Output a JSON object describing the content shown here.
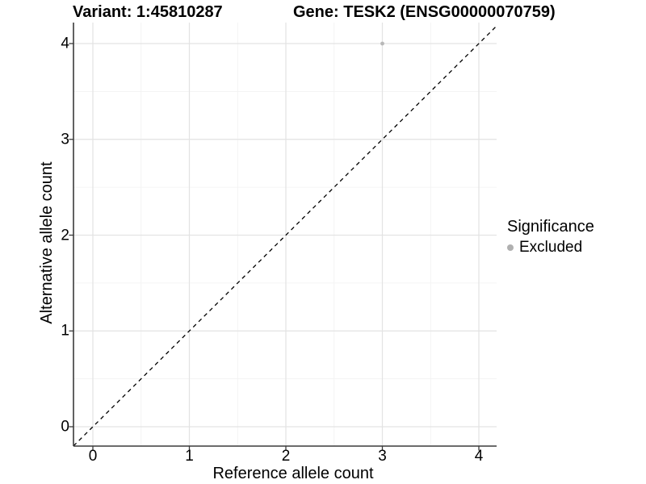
{
  "header": {
    "variant_title": "Variant: 1:45810287",
    "gene_title": "Gene: TESK2 (ENSG00000070759)"
  },
  "axes": {
    "x": {
      "label": "Reference allele count",
      "ticks": [
        "0",
        "1",
        "2",
        "3",
        "4"
      ]
    },
    "y": {
      "label": "Alternative allele count",
      "ticks": [
        "0",
        "1",
        "2",
        "3",
        "4"
      ]
    }
  },
  "legend": {
    "title": "Significance",
    "items": [
      {
        "label": "Excluded",
        "marker_color": "#b0b0b0"
      }
    ]
  },
  "colors": {
    "background": "#ffffff",
    "major_grid": "#e3e3e3",
    "minor_grid": "#f1f1f1",
    "axis_line": "#3a3a3a",
    "point": "#b8b8b8",
    "identity_line": "#000000"
  },
  "chart_data": {
    "type": "scatter",
    "title": "Variant: 1:45810287 | Gene: TESK2 (ENSG00000070759)",
    "xlabel": "Reference allele count",
    "ylabel": "Alternative allele count",
    "xlim": [
      -0.2,
      4.19
    ],
    "ylim": [
      -0.2,
      4.22
    ],
    "x_ticks": [
      0,
      1,
      2,
      3,
      4
    ],
    "y_ticks": [
      0,
      1,
      2,
      3,
      4
    ],
    "grid": "major+minor",
    "legend_position": "right",
    "series": [
      {
        "name": "Excluded",
        "color": "#b8b8b8",
        "points": [
          {
            "x": 3,
            "y": 4
          }
        ]
      }
    ],
    "reference_line": {
      "slope": 1,
      "intercept": 0,
      "style": "dashed",
      "color": "#000000"
    }
  }
}
